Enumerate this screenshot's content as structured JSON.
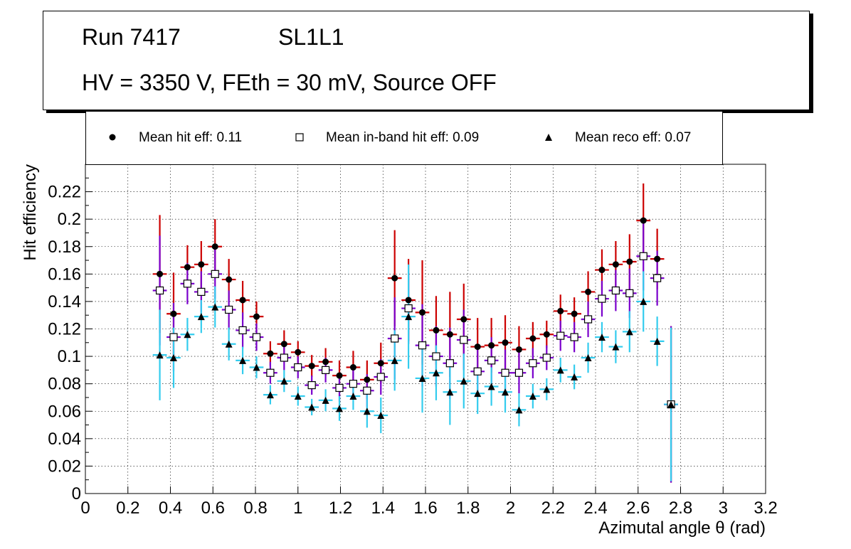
{
  "header": {
    "run_label": "Run 7417",
    "layer_label": "SL1L1",
    "conditions": "HV = 3350 V, FEth = 30 mV, Source OFF"
  },
  "legend": {
    "hit": "Mean hit  eff: 0.11",
    "inband": "Mean in-band hit eff: 0.09",
    "reco": "Mean reco eff: 0.07"
  },
  "colors": {
    "hit_err": "#cc0000",
    "inband_err": "#7a00cc",
    "reco_err": "#33ccee",
    "grid": "#000000"
  },
  "chart_data": {
    "type": "scatter",
    "xlabel": "Azimutal angle θ (rad)",
    "ylabel": "Hit efficiency",
    "xlim": [
      0,
      3.2
    ],
    "ylim": [
      0,
      0.24
    ],
    "xticks": [
      "0",
      "0.2",
      "0.4",
      "0.6",
      "0.8",
      "1",
      "1.2",
      "1.4",
      "1.6",
      "1.8",
      "2",
      "2.2",
      "2.4",
      "2.6",
      "2.8",
      "3",
      "3.2"
    ],
    "yticks": [
      "0",
      "0.02",
      "0.04",
      "0.06",
      "0.08",
      "0.1",
      "0.12",
      "0.14",
      "0.16",
      "0.18",
      "0.2",
      "0.22"
    ],
    "bin_halfwidth": 0.033,
    "grid": true,
    "series": [
      {
        "name": "Mean hit  eff: 0.11",
        "marker": "circle",
        "x": [
          0.35,
          0.415,
          0.48,
          0.545,
          0.61,
          0.675,
          0.74,
          0.805,
          0.87,
          0.935,
          1.0,
          1.065,
          1.13,
          1.195,
          1.26,
          1.325,
          1.39,
          1.455,
          1.52,
          1.585,
          1.65,
          1.715,
          1.78,
          1.845,
          1.91,
          1.975,
          2.04,
          2.105,
          2.17,
          2.235,
          2.3,
          2.365,
          2.43,
          2.495,
          2.56,
          2.625,
          2.69,
          2.755
        ],
        "y": [
          0.16,
          0.131,
          0.165,
          0.167,
          0.18,
          0.156,
          0.141,
          0.129,
          0.102,
          0.109,
          0.103,
          0.093,
          0.096,
          0.086,
          0.092,
          0.083,
          0.095,
          0.157,
          0.141,
          0.132,
          0.119,
          0.116,
          0.127,
          0.107,
          0.108,
          0.11,
          0.105,
          0.113,
          0.116,
          0.133,
          0.131,
          0.147,
          0.163,
          0.167,
          0.169,
          0.199,
          0.171,
          0.065
        ],
        "err": [
          0.043,
          0.03,
          0.016,
          0.017,
          0.02,
          0.015,
          0.014,
          0.011,
          0.009,
          0.01,
          0.008,
          0.008,
          0.01,
          0.011,
          0.012,
          0.014,
          0.015,
          0.035,
          0.03,
          0.038,
          0.025,
          0.031,
          0.026,
          0.021,
          0.02,
          0.02,
          0.017,
          0.012,
          0.01,
          0.012,
          0.012,
          0.015,
          0.015,
          0.017,
          0.02,
          0.027,
          0.022,
          0.057
        ]
      },
      {
        "name": "Mean in-band hit eff: 0.09",
        "marker": "open-square",
        "x": [
          0.35,
          0.415,
          0.48,
          0.545,
          0.61,
          0.675,
          0.74,
          0.805,
          0.87,
          0.935,
          1.0,
          1.065,
          1.13,
          1.195,
          1.26,
          1.325,
          1.39,
          1.455,
          1.52,
          1.585,
          1.65,
          1.715,
          1.78,
          1.845,
          1.91,
          1.975,
          2.04,
          2.105,
          2.17,
          2.235,
          2.3,
          2.365,
          2.43,
          2.495,
          2.56,
          2.625,
          2.69,
          2.755
        ],
        "y": [
          0.148,
          0.114,
          0.153,
          0.147,
          0.16,
          0.134,
          0.119,
          0.114,
          0.088,
          0.099,
          0.092,
          0.079,
          0.09,
          0.077,
          0.08,
          0.075,
          0.085,
          0.113,
          0.135,
          0.108,
          0.1,
          0.095,
          0.112,
          0.089,
          0.097,
          0.088,
          0.088,
          0.095,
          0.099,
          0.115,
          0.114,
          0.127,
          0.142,
          0.148,
          0.146,
          0.173,
          0.157,
          0.065
        ],
        "err": [
          0.04,
          0.025,
          0.015,
          0.015,
          0.018,
          0.014,
          0.013,
          0.01,
          0.008,
          0.009,
          0.008,
          0.007,
          0.009,
          0.01,
          0.01,
          0.012,
          0.013,
          0.03,
          0.026,
          0.03,
          0.022,
          0.026,
          0.022,
          0.018,
          0.017,
          0.017,
          0.015,
          0.011,
          0.009,
          0.011,
          0.011,
          0.013,
          0.013,
          0.015,
          0.018,
          0.025,
          0.02,
          0.057
        ]
      },
      {
        "name": "Mean reco eff: 0.07",
        "marker": "triangle",
        "x": [
          0.35,
          0.415,
          0.48,
          0.545,
          0.61,
          0.675,
          0.74,
          0.805,
          0.87,
          0.935,
          1.0,
          1.065,
          1.13,
          1.195,
          1.26,
          1.325,
          1.39,
          1.455,
          1.52,
          1.585,
          1.65,
          1.715,
          1.78,
          1.845,
          1.91,
          1.975,
          2.04,
          2.105,
          2.17,
          2.235,
          2.3,
          2.365,
          2.43,
          2.495,
          2.56,
          2.625,
          2.69,
          2.755
        ],
        "y": [
          0.101,
          0.099,
          0.116,
          0.129,
          0.136,
          0.109,
          0.097,
          0.092,
          0.072,
          0.082,
          0.071,
          0.063,
          0.068,
          0.062,
          0.071,
          0.06,
          0.057,
          0.097,
          0.129,
          0.084,
          0.088,
          0.074,
          0.082,
          0.073,
          0.078,
          0.074,
          0.061,
          0.071,
          0.076,
          0.09,
          0.085,
          0.099,
          0.114,
          0.107,
          0.118,
          0.14,
          0.111,
          0.065
        ],
        "err": [
          0.033,
          0.022,
          0.012,
          0.012,
          0.015,
          0.012,
          0.01,
          0.008,
          0.007,
          0.008,
          0.007,
          0.006,
          0.008,
          0.009,
          0.01,
          0.012,
          0.013,
          0.022,
          0.038,
          0.025,
          0.02,
          0.024,
          0.02,
          0.015,
          0.014,
          0.015,
          0.012,
          0.009,
          0.008,
          0.009,
          0.009,
          0.011,
          0.011,
          0.012,
          0.015,
          0.022,
          0.018,
          0.056
        ]
      }
    ]
  }
}
